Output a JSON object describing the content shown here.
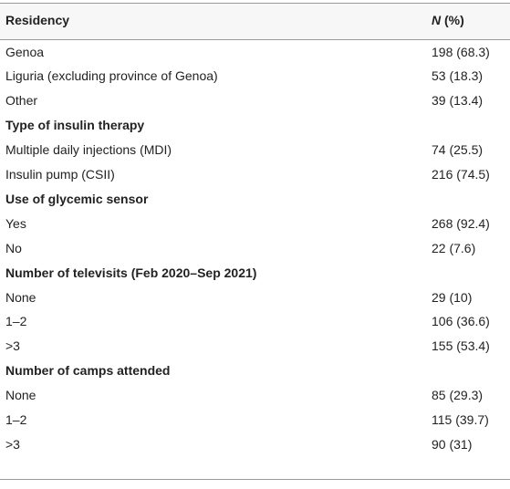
{
  "table": {
    "header": {
      "label": "Residency",
      "n": "N",
      "pct": "(%)"
    },
    "rows": [
      {
        "label": "Genoa",
        "value": "198 (68.3)"
      },
      {
        "label": "Liguria (excluding province of Genoa)",
        "value": "53 (18.3)"
      },
      {
        "label": "Other",
        "value": "39 (13.4)"
      },
      {
        "heading": "Type of insulin therapy"
      },
      {
        "label": "Multiple daily injections (MDI)",
        "value": "74 (25.5)"
      },
      {
        "label": "Insulin pump (CSII)",
        "value": "216 (74.5)"
      },
      {
        "heading": "Use of glycemic sensor"
      },
      {
        "label": "Yes",
        "value": "268 (92.4)"
      },
      {
        "label": "No",
        "value": "22 (7.6)"
      },
      {
        "heading": "Number of televisits (Feb 2020–Sep 2021)"
      },
      {
        "label": "None",
        "value": "29 (10)"
      },
      {
        "label": "1–2",
        "value": "106 (36.6)"
      },
      {
        "label": ">3",
        "value": "155 (53.4)"
      },
      {
        "heading": "Number of camps attended"
      },
      {
        "label": "None",
        "value": "85 (29.3)"
      },
      {
        "label": "1–2",
        "value": "115 (39.7)"
      },
      {
        "label": ">3",
        "value": "90 (31)"
      }
    ]
  }
}
